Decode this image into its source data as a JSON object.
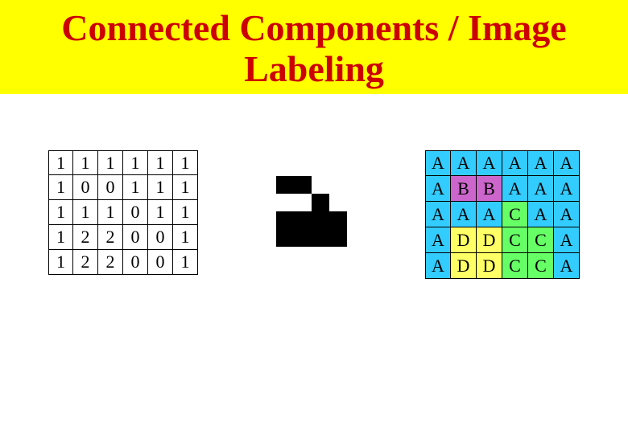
{
  "title": "Connected Components / Image Labeling",
  "title_color": "#cc0000",
  "title_bg": "#ffff00",
  "title_fontsize": 46,
  "page_bg": "#ffffff",
  "left_grid": {
    "type": "table",
    "rows": 5,
    "cols": 6,
    "cell_size": 31,
    "border_color": "#000000",
    "bg_color": "#ffffff",
    "text_color": "#000000",
    "fontsize": 22,
    "values": [
      [
        1,
        1,
        1,
        1,
        1,
        1
      ],
      [
        1,
        0,
        0,
        1,
        1,
        1
      ],
      [
        1,
        1,
        1,
        0,
        1,
        1
      ],
      [
        1,
        2,
        2,
        0,
        0,
        1
      ],
      [
        1,
        2,
        2,
        0,
        0,
        1
      ]
    ]
  },
  "mid_grid": {
    "type": "heatmap",
    "rows": 5,
    "cols": 6,
    "cell_size": 22,
    "values": [
      [
        1,
        1,
        1,
        1,
        1,
        1
      ],
      [
        1,
        0,
        0,
        1,
        1,
        1
      ],
      [
        1,
        1,
        1,
        0,
        1,
        1
      ],
      [
        1,
        0,
        0,
        0,
        0,
        1
      ],
      [
        1,
        0,
        0,
        0,
        0,
        1
      ]
    ],
    "color_map": {
      "0": "#000000",
      "1": "#ffffff"
    }
  },
  "right_grid": {
    "type": "table",
    "rows": 5,
    "cols": 6,
    "cell_size": 32,
    "border_color": "#000000",
    "text_color": "#000000",
    "fontsize": 22,
    "labels": [
      [
        "A",
        "A",
        "A",
        "A",
        "A",
        "A"
      ],
      [
        "A",
        "B",
        "B",
        "A",
        "A",
        "A"
      ],
      [
        "A",
        "A",
        "A",
        "C",
        "A",
        "A"
      ],
      [
        "A",
        "D",
        "D",
        "C",
        "C",
        "A"
      ],
      [
        "A",
        "D",
        "D",
        "C",
        "C",
        "A"
      ]
    ],
    "label_colors": {
      "A": "#33ccff",
      "B": "#cc66cc",
      "C": "#66ff66",
      "D": "#ffff66"
    }
  }
}
